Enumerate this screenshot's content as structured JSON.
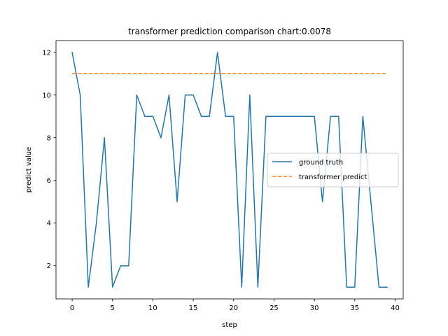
{
  "chart_data": {
    "type": "line",
    "title": "transformer prediction comparison chart:0.0078",
    "xlabel": "step",
    "ylabel": "predict value",
    "xlim": [
      -2,
      41
    ],
    "ylim": [
      0.45,
      12.55
    ],
    "xticks": [
      0,
      5,
      10,
      15,
      20,
      25,
      30,
      35,
      40
    ],
    "yticks": [
      2,
      4,
      6,
      8,
      10,
      12
    ],
    "grid": false,
    "legend_position": "center-right",
    "series": [
      {
        "name": "ground truth",
        "color": "#1f77b4",
        "style": "solid",
        "x": [
          0,
          1,
          2,
          3,
          4,
          5,
          6,
          7,
          8,
          9,
          10,
          11,
          12,
          13,
          14,
          15,
          16,
          17,
          18,
          19,
          20,
          21,
          22,
          23,
          24,
          25,
          26,
          27,
          28,
          29,
          30,
          31,
          32,
          33,
          34,
          35,
          36,
          37,
          38,
          39
        ],
        "values": [
          12,
          10,
          1,
          4,
          8,
          1,
          2,
          2,
          10,
          9,
          9,
          8,
          10,
          5,
          10,
          10,
          9,
          9,
          12,
          9,
          9,
          1,
          10,
          1,
          9,
          9,
          9,
          9,
          9,
          9,
          9,
          5,
          9,
          9,
          1,
          1,
          9,
          5,
          1,
          1
        ]
      },
      {
        "name": "transformer predict",
        "color": "#ff7f0e",
        "style": "dashed",
        "x": [
          0,
          1,
          2,
          3,
          4,
          5,
          6,
          7,
          8,
          9,
          10,
          11,
          12,
          13,
          14,
          15,
          16,
          17,
          18,
          19,
          20,
          21,
          22,
          23,
          24,
          25,
          26,
          27,
          28,
          29,
          30,
          31,
          32,
          33,
          34,
          35,
          36,
          37,
          38,
          39
        ],
        "values": [
          11,
          11,
          11,
          11,
          11,
          11,
          11,
          11,
          11,
          11,
          11,
          11,
          11,
          11,
          11,
          11,
          11,
          11,
          11,
          11,
          11,
          11,
          11,
          11,
          11,
          11,
          11,
          11,
          11,
          11,
          11,
          11,
          11,
          11,
          11,
          11,
          11,
          11,
          11,
          11
        ]
      }
    ]
  }
}
